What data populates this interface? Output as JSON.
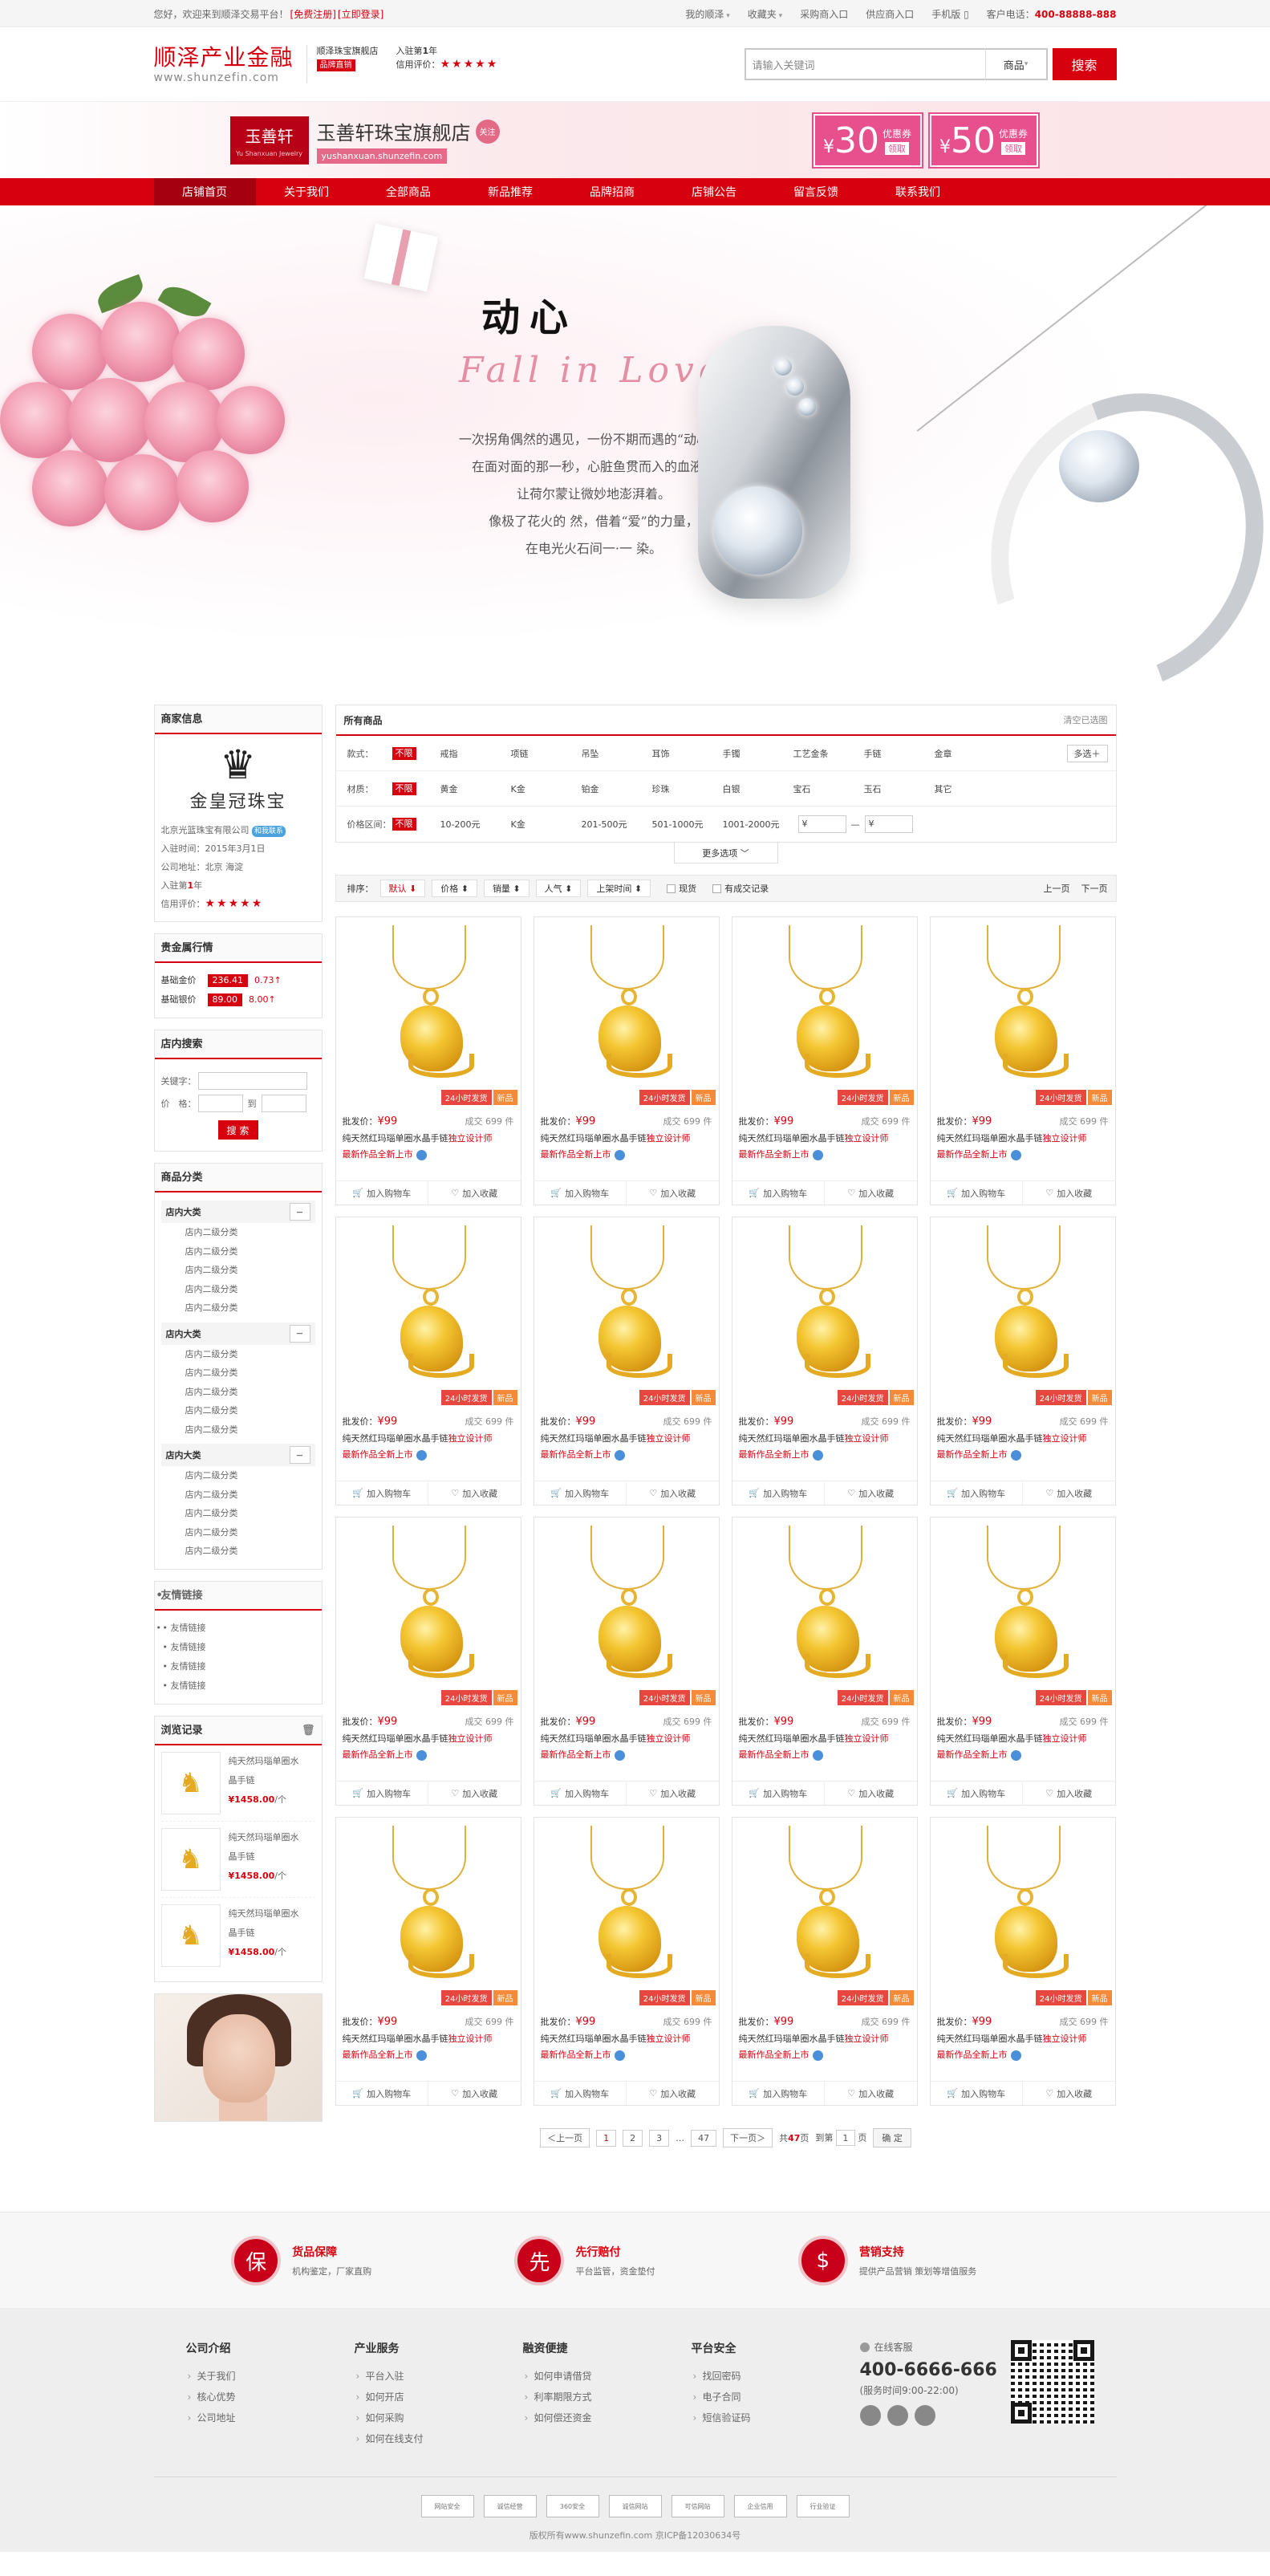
{
  "topbar": {
    "welcome": "您好，欢迎来到顺泽交易平台！",
    "register": "[免费注册]",
    "login": "[立即登录]",
    "links": [
      "我的顺泽",
      "收藏夹",
      "采购商入口",
      "供应商入口",
      "手机版"
    ],
    "hotline_label": "客户电话：",
    "hotline": "400-88888-888"
  },
  "header": {
    "logo_cn": "顺泽产业金融",
    "logo_en": "www.shunzefin.com",
    "shop_type": "顺泽珠宝旗舰店",
    "shop_badge": "品牌直销",
    "joined_label": "入驻第",
    "joined_years": "1",
    "joined_unit": "年",
    "credit_label": "信用评价：",
    "stars": "★★★★★"
  },
  "search": {
    "placeholder": "请输入关键词",
    "scope": "商品",
    "button": "搜索"
  },
  "shop_banner": {
    "logo_cn": "玉善轩",
    "logo_en": "Yu Shanxuan Jewelry",
    "name": "玉善轩珠宝旗舰店",
    "follow": "关注",
    "url": "yushanxuan.shunzefin.com",
    "coupons": [
      {
        "value": "30",
        "label": "优惠券",
        "action": "领取"
      },
      {
        "value": "50",
        "label": "优惠券",
        "action": "领取"
      }
    ]
  },
  "nav": [
    "店铺首页",
    "关于我们",
    "全部商品",
    "新品推荐",
    "品牌招商",
    "店铺公告",
    "留言反馈",
    "联系我们"
  ],
  "hero": {
    "title": "动心",
    "subtitle": "Fall in Love",
    "lines": [
      "一次拐角偶然的遇见，一份不期而遇的“动心”。",
      "在面对面的那一秒，心脏鱼贯而入的血液，",
      "让荷尔蒙让微妙地澎湃着。",
      "像极了花火的  然，借着“爱”的力量，",
      "在电光火石间一·一  染。"
    ]
  },
  "side": {
    "merchant": {
      "title": "商家信息",
      "brand": "金皇冠珠宝",
      "company": "北京光篮珠宝有限公司",
      "contact": "和我联系",
      "joined_date": "入驻时间：2015年3月1日",
      "address": "公司地址：北京 海淀",
      "joined_years_label": "入驻第",
      "joined_years": "1",
      "joined_unit": "年",
      "credit": "信用评价："
    },
    "gold": {
      "title": "贵金属行情",
      "rows": [
        {
          "name": "基础金价",
          "price": "236.41",
          "change": "0.73↑"
        },
        {
          "name": "基础银价",
          "price": "89.00",
          "change": "8.00↑"
        }
      ]
    },
    "search": {
      "title": "店内搜索",
      "keyword": "关键字：",
      "price": "价　格：",
      "to": "到",
      "button": "搜 索"
    },
    "categories": {
      "title": "商品分类",
      "groups": [
        {
          "name": "店内大类",
          "items": [
            "店内二级分类",
            "店内二级分类",
            "店内二级分类",
            "店内二级分类",
            "店内二级分类"
          ]
        },
        {
          "name": "店内大类",
          "items": [
            "店内二级分类",
            "店内二级分类",
            "店内二级分类",
            "店内二级分类",
            "店内二级分类"
          ]
        },
        {
          "name": "店内大类",
          "items": [
            "店内二级分类",
            "店内二级分类",
            "店内二级分类",
            "店内二级分类",
            "店内二级分类"
          ]
        }
      ]
    },
    "links": {
      "title": "友情链接",
      "items": [
        "友情链接",
        "友情链接",
        "友情链接",
        "友情链接"
      ]
    },
    "history": {
      "title": "浏览记录",
      "items": [
        {
          "line1": "纯天然玛瑙单圈水",
          "line2": "晶手链",
          "price": "¥1458.00",
          "unit": "/个"
        },
        {
          "line1": "纯天然玛瑙单圈水",
          "line2": "晶手链",
          "price": "¥1458.00",
          "unit": "/个"
        },
        {
          "line1": "纯天然玛瑙单圈水",
          "line2": "晶手链",
          "price": "¥1458.00",
          "unit": "/个"
        }
      ]
    }
  },
  "filter": {
    "title": "所有商品",
    "clear": "清空已选图",
    "rows": [
      {
        "label": "款式：",
        "none": "不限",
        "options": [
          "戒指",
          "项链",
          "吊坠",
          "耳饰",
          "手镯",
          "工艺金条",
          "手链",
          "金章"
        ],
        "more": "多选＋"
      },
      {
        "label": "材质：",
        "none": "不限",
        "options": [
          "黄金",
          "K金",
          "铂金",
          "珍珠",
          "白银",
          "宝石",
          "玉石",
          "其它"
        ]
      }
    ],
    "price": {
      "label": "价格区间：",
      "none": "不限",
      "options": [
        "10-200元",
        "K金",
        "201-500元",
        "501-1000元",
        "1001-2000元"
      ],
      "from": "¥",
      "dash": "—",
      "to": "¥"
    },
    "more": "更多选项 ﹀"
  },
  "sortbar": {
    "label": "排序：",
    "sorts": [
      "默认 ⬇",
      "价格 ⬍",
      "销量 ⬍",
      "人气 ⬍",
      "上架时间 ⬍"
    ],
    "checks": [
      "现货",
      "有成交记录"
    ],
    "prev": "上一页",
    "next": "下一页"
  },
  "product": {
    "tag1": "24小时发货",
    "tag2": "新品",
    "price_label": "批发价：",
    "price": "¥99",
    "deal_label": "成交",
    "deal_count": "699",
    "deal_unit": "件",
    "title_a": "纯天然红玛瑙单圈水晶手链",
    "title_b": "独立设计师",
    "title_c": "最新作品全新上市",
    "cart": "加入购物车",
    "fav": "加入收藏"
  },
  "pager": {
    "prev": "＜上一页",
    "pages": [
      "1",
      "2",
      "3"
    ],
    "ellipsis": "…",
    "last": "47",
    "next": "下一页＞",
    "total_a": "共",
    "total": "47",
    "total_b": "页",
    "goto_a": "到第",
    "goto_val": "1",
    "goto_b": "页",
    "ok": "确 定"
  },
  "services": [
    {
      "icon": "保",
      "title": "货品保障",
      "desc": "机构鉴定，厂家直购"
    },
    {
      "icon": "先",
      "title": "先行赔付",
      "desc": "平台监管，资金垫付"
    },
    {
      "icon": "$",
      "title": "营销支持",
      "desc": "提供产品营销 策划等增值服务"
    }
  ],
  "footer": {
    "cols": [
      {
        "title": "公司介绍",
        "items": [
          "关于我们",
          "核心优势",
          "公司地址"
        ]
      },
      {
        "title": "产业服务",
        "items": [
          "平台入驻",
          "如何开店",
          "如何采购",
          "如何在线支付"
        ]
      },
      {
        "title": "融资便捷",
        "items": [
          "如何申请借贷",
          "利率期限方式",
          "如何偿还资金"
        ]
      },
      {
        "title": "平台安全",
        "items": [
          "找回密码",
          "电子合同",
          "短信验证码"
        ]
      }
    ],
    "service_label": "在线客服",
    "tel": "400-6666-666",
    "hours": "(服务时间9:00-22:00)",
    "certs": [
      "网站安全",
      "诚信经营",
      "360安全",
      "诚信网站",
      "可信网站",
      "企业信用",
      "行业验证"
    ],
    "copyright": "版权所有www.shunzefin.com 京ICP备12030634号"
  },
  "colors": {
    "brand": "#d7000f",
    "coupon": "#e84f8d"
  }
}
